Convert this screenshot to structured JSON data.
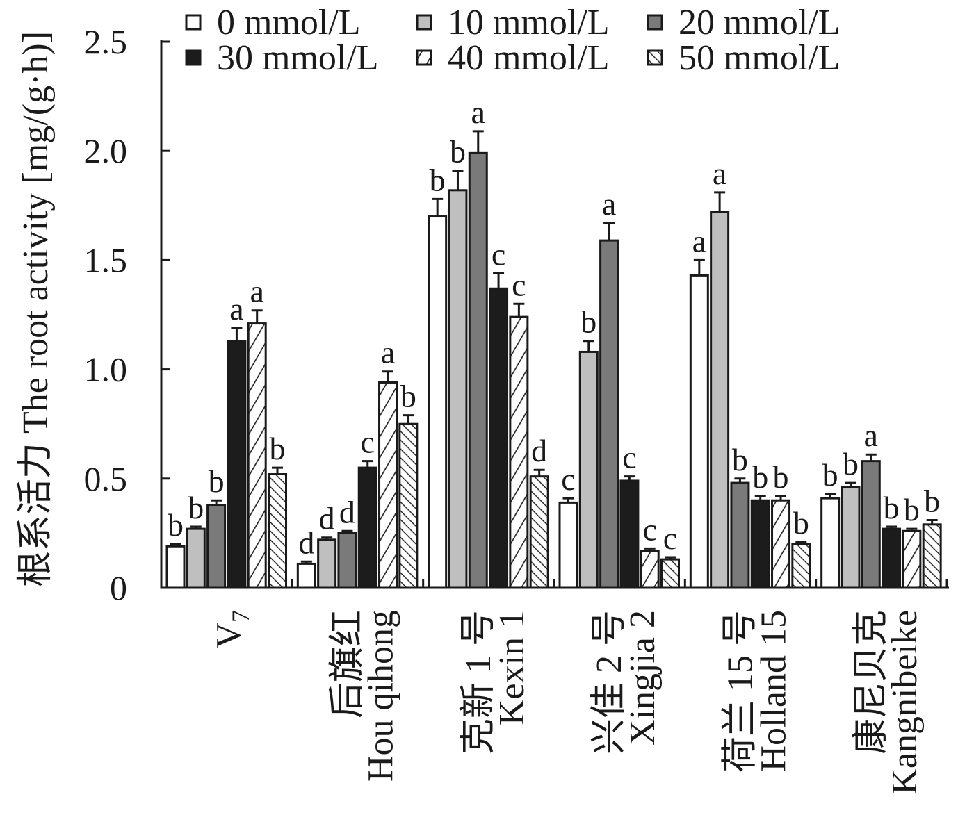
{
  "chart_data": {
    "type": "bar",
    "ylabel": "根系活力 The root activity [mg/(g·h)]",
    "ylim": [
      0,
      2.5
    ],
    "yticks": [
      0,
      0.5,
      1.0,
      1.5,
      2.0,
      2.5
    ],
    "ytick_labels": [
      "0",
      "0.5",
      "1.0",
      "1.5",
      "2.0",
      "2.5"
    ],
    "grid": false,
    "legend": "top",
    "categories": [
      {
        "label": "V",
        "subscript": "7"
      },
      {
        "label": "后旗红",
        "label2": "Hou qihong"
      },
      {
        "label": "克新 1 号",
        "label2": "Kexin 1"
      },
      {
        "label": "兴佳 2 号",
        "label2": "Xingjia 2"
      },
      {
        "label": "荷兰 15 号",
        "label2": "Holland 15"
      },
      {
        "label": "康尼贝克",
        "label2": "Kangnibeike"
      }
    ],
    "series": [
      {
        "name": "0 mmol/L",
        "color": "#ffffff",
        "values": [
          0.19,
          0.11,
          1.7,
          0.39,
          1.43,
          0.41
        ],
        "errors": [
          0.01,
          0.01,
          0.08,
          0.02,
          0.07,
          0.02
        ],
        "letters": [
          "b",
          "d",
          "b",
          "c",
          "a",
          "b"
        ]
      },
      {
        "name": "10 mmol/L",
        "color": "#bfbfbf",
        "values": [
          0.27,
          0.22,
          1.82,
          1.08,
          1.72,
          0.46
        ],
        "errors": [
          0.01,
          0.01,
          0.09,
          0.05,
          0.09,
          0.02
        ],
        "letters": [
          "b",
          "d",
          "b",
          "b",
          "a",
          "b"
        ]
      },
      {
        "name": "20 mmol/L",
        "color": "#7a7a7a",
        "values": [
          0.38,
          0.25,
          1.99,
          1.59,
          0.48,
          0.58
        ],
        "errors": [
          0.02,
          0.01,
          0.1,
          0.08,
          0.02,
          0.03
        ],
        "letters": [
          "b",
          "d",
          "a",
          "a",
          "b",
          "a"
        ]
      },
      {
        "name": "30 mmol/L",
        "color": "#1c1c1c",
        "values": [
          1.13,
          0.55,
          1.37,
          0.49,
          0.4,
          0.27
        ],
        "errors": [
          0.06,
          0.03,
          0.07,
          0.02,
          0.02,
          0.01
        ],
        "letters": [
          "a",
          "c",
          "c",
          "c",
          "b",
          "b"
        ]
      },
      {
        "name": "40 mmol/L",
        "color": "#ffffff",
        "hatch_slope": 1,
        "values": [
          1.21,
          0.94,
          1.24,
          0.17,
          0.4,
          0.26
        ],
        "errors": [
          0.06,
          0.05,
          0.06,
          0.01,
          0.02,
          0.01
        ],
        "letters": [
          "a",
          "a",
          "c",
          "c",
          "b",
          "b"
        ]
      },
      {
        "name": "50 mmol/L",
        "color": "#ffffff",
        "hatch_slope": -1,
        "values": [
          0.52,
          0.75,
          0.51,
          0.13,
          0.2,
          0.29
        ],
        "errors": [
          0.03,
          0.04,
          0.03,
          0.01,
          0.01,
          0.02
        ],
        "letters": [
          "b",
          "b",
          "d",
          "c",
          "b",
          "b"
        ]
      }
    ]
  }
}
